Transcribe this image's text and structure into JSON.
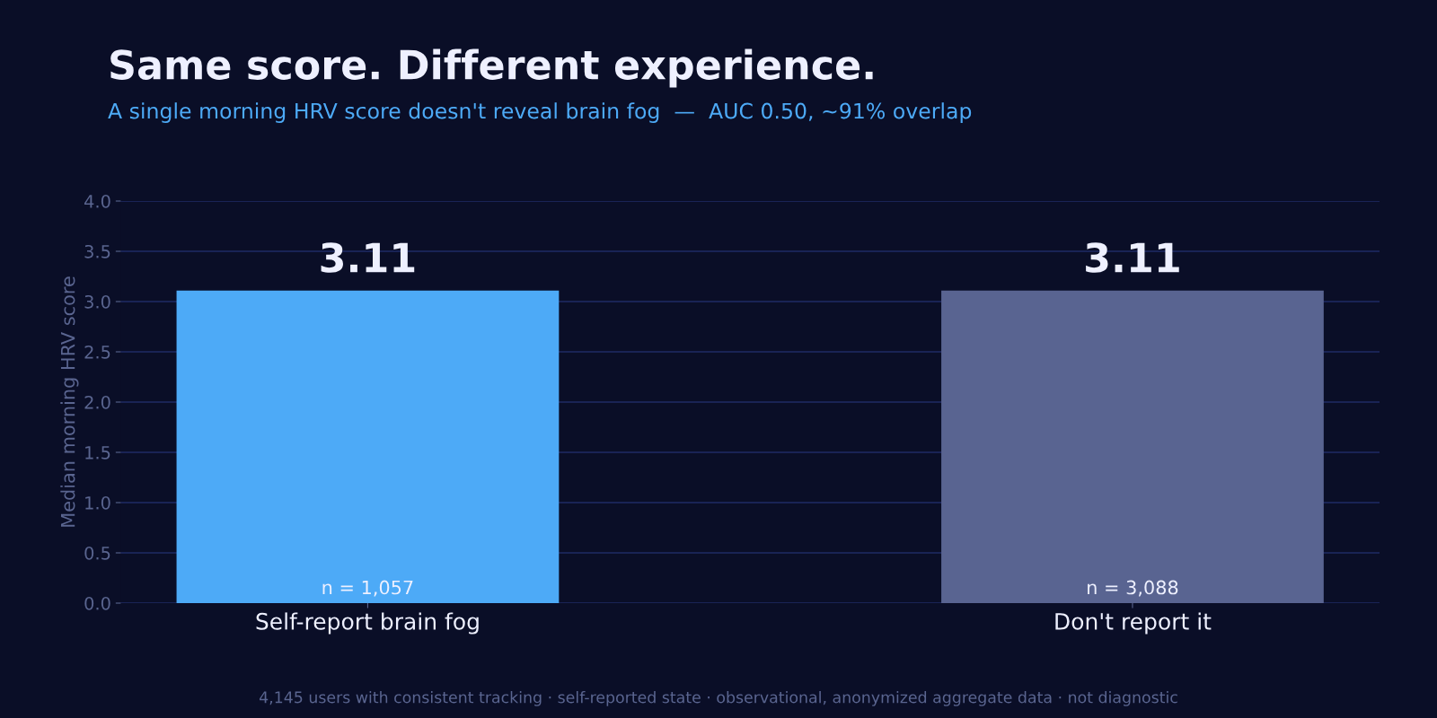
{
  "chart_data": {
    "type": "bar",
    "title": "Same score. Different experience.",
    "subtitle": "A single morning HRV score doesn't reveal brain fog  —  AUC 0.50, ~91% overlap",
    "ylabel": "Median morning HRV score",
    "categories": [
      "Self-report brain fog",
      "Don't report it"
    ],
    "values": [
      3.11,
      3.11
    ],
    "colors": [
      "#4daaf7",
      "#596491"
    ],
    "ylim": [
      0,
      4
    ],
    "yticks": [
      {
        "value": 0,
        "label": "0.0"
      },
      {
        "value": 0.5,
        "label": "0.5"
      },
      {
        "value": 1,
        "label": "1.0"
      },
      {
        "value": 1.5,
        "label": "1.5"
      },
      {
        "value": 2,
        "label": "2.0"
      },
      {
        "value": 2.5,
        "label": "2.5"
      },
      {
        "value": 3,
        "label": "3.0"
      },
      {
        "value": 3.5,
        "label": "3.5"
      },
      {
        "value": 4,
        "label": "4.0"
      }
    ],
    "grid": "y",
    "data_labels": true,
    "annotations": [
      "n = 1,057",
      "n = 3,088",
      "4,145 users with consistent tracking · self-reported state · observational, anonymized aggregate data · not diagnostic"
    ]
  }
}
